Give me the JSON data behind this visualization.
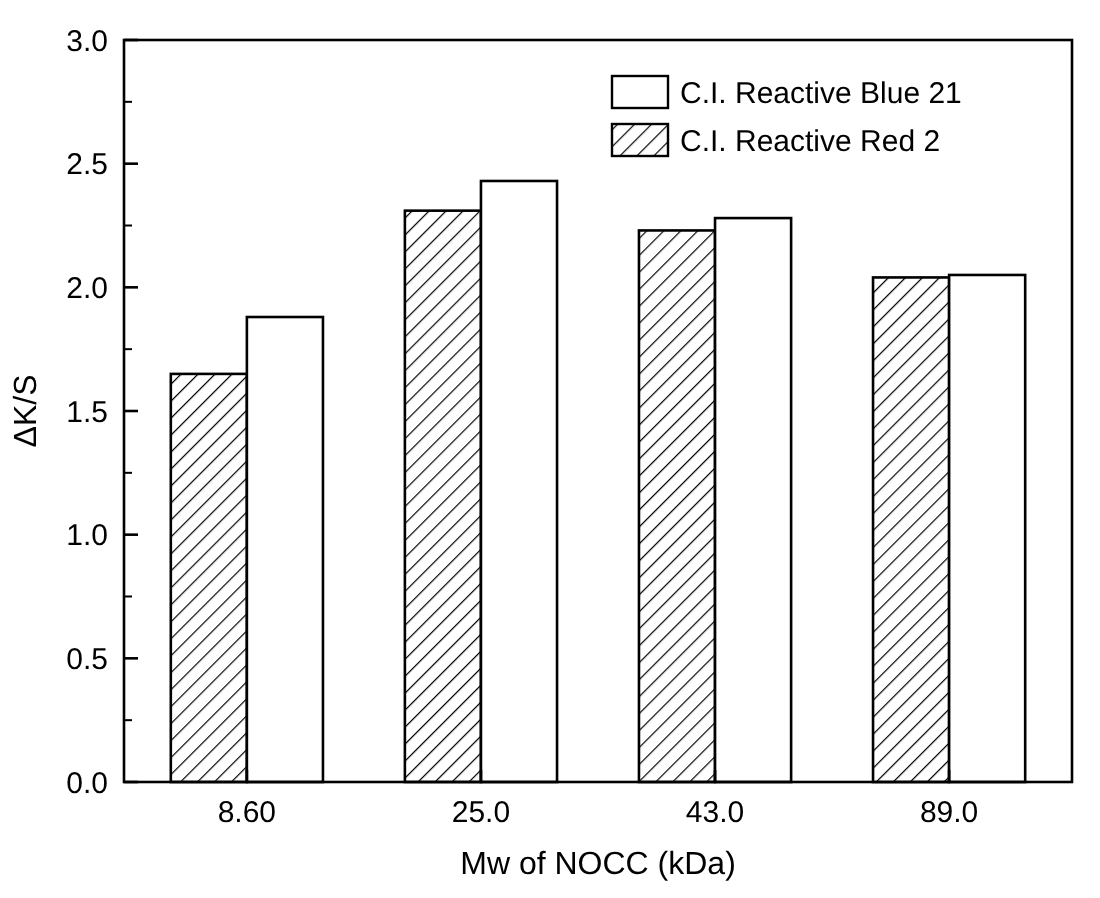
{
  "chart_data": {
    "type": "bar",
    "xlabel": "Mw of NOCC (kDa)",
    "ylabel": "ΔK/S",
    "categories": [
      "8.60",
      "25.0",
      "43.0",
      "89.0"
    ],
    "series": [
      {
        "name": "C.I. Reactive Red 2",
        "color": "#000000",
        "values": [
          1.65,
          2.31,
          2.23,
          2.04
        ]
      },
      {
        "name": "C.I. Reactive Blue 21",
        "color": "#ffffff",
        "values": [
          1.88,
          2.43,
          2.28,
          2.05
        ]
      }
    ],
    "ylim": [
      0,
      3
    ],
    "yticks": [
      {
        "value": 0,
        "label": "0.0"
      },
      0.5,
      {
        "value": 1,
        "label": "1.0"
      },
      1.5,
      {
        "value": 2,
        "label": "2.0"
      },
      2.5,
      {
        "value": 3,
        "label": "3.0"
      }
    ],
    "legend": "top right",
    "grid": false
  }
}
